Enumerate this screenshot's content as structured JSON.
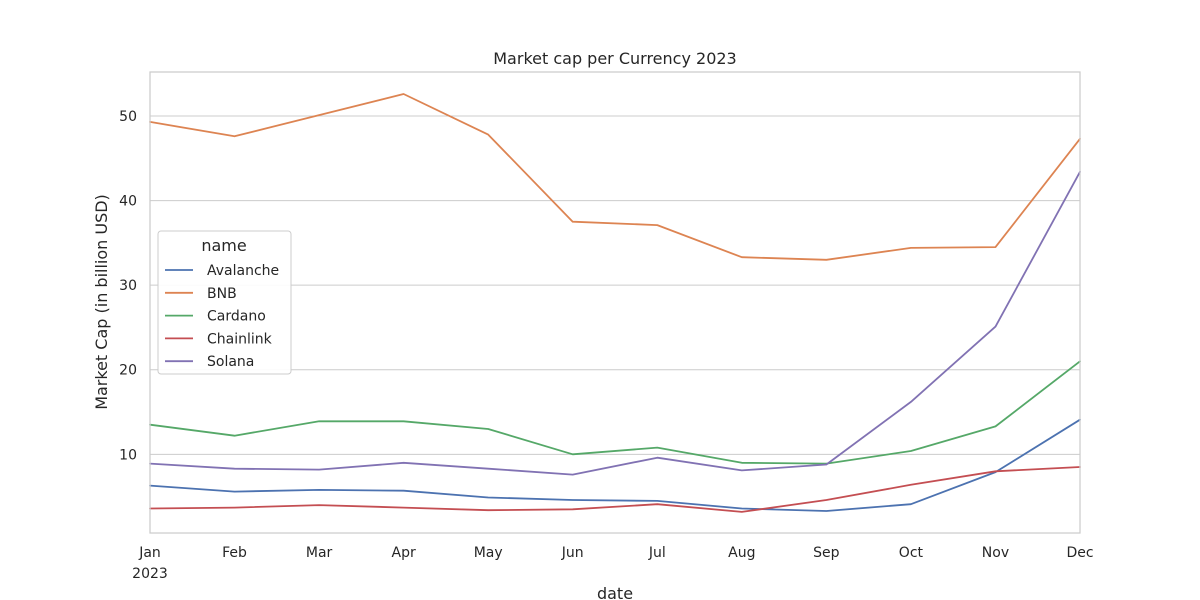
{
  "chart_data": {
    "type": "line",
    "title": "Market cap per Currency 2023",
    "xlabel": "date",
    "ylabel": "Market Cap (in billion USD)",
    "categories": [
      "Jan\n2023",
      "Feb",
      "Mar",
      "Apr",
      "May",
      "Jun",
      "Jul",
      "Aug",
      "Sep",
      "Oct",
      "Nov",
      "Dec"
    ],
    "x": [
      "2023-01",
      "2023-02",
      "2023-03",
      "2023-04",
      "2023-05",
      "2023-06",
      "2023-07",
      "2023-08",
      "2023-09",
      "2023-10",
      "2023-11",
      "2023-12"
    ],
    "ylim": [
      0.7,
      55.2
    ],
    "yticks": [
      10,
      20,
      30,
      40,
      50
    ],
    "grid": "horizontal",
    "legend": {
      "title": "name",
      "placement": "center-left"
    },
    "series": [
      {
        "name": "Avalanche",
        "color": "#4c72b0",
        "values": [
          6.3,
          5.6,
          5.8,
          5.7,
          4.9,
          4.6,
          4.5,
          3.6,
          3.3,
          4.1,
          7.9,
          14.1
        ]
      },
      {
        "name": "BNB",
        "color": "#dd8452",
        "values": [
          49.3,
          47.6,
          50.1,
          52.6,
          47.8,
          37.5,
          37.1,
          33.3,
          33.0,
          34.4,
          34.5,
          47.3
        ]
      },
      {
        "name": "Cardano",
        "color": "#55a868",
        "values": [
          13.5,
          12.2,
          13.9,
          13.9,
          13.0,
          10.0,
          10.8,
          9.0,
          8.9,
          10.4,
          13.3,
          21.0
        ]
      },
      {
        "name": "Chainlink",
        "color": "#c44e52",
        "values": [
          3.6,
          3.7,
          4.0,
          3.7,
          3.4,
          3.5,
          4.1,
          3.2,
          4.6,
          6.4,
          8.0,
          8.5
        ]
      },
      {
        "name": "Solana",
        "color": "#8172b3",
        "values": [
          8.9,
          8.3,
          8.2,
          9.0,
          8.3,
          7.6,
          9.6,
          8.1,
          8.8,
          16.2,
          25.1,
          43.4
        ]
      }
    ]
  }
}
